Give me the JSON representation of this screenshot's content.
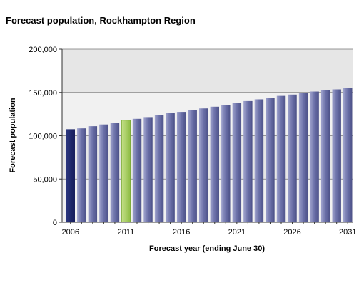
{
  "chart_data": {
    "type": "bar",
    "title": "Forecast population, Rockhampton Region",
    "xlabel": "Forecast year (ending June 30)",
    "ylabel": "Forecast population",
    "ylim": [
      0,
      200000
    ],
    "yticks": [
      0,
      50000,
      100000,
      150000,
      200000
    ],
    "ytick_labels": [
      "0",
      "50,000",
      "100,000",
      "150,000",
      "200,000"
    ],
    "xtick_labels": [
      "2006",
      "2011",
      "2016",
      "2021",
      "2026",
      "2031"
    ],
    "categories": [
      2006,
      2007,
      2008,
      2009,
      2010,
      2011,
      2012,
      2013,
      2014,
      2015,
      2016,
      2017,
      2018,
      2019,
      2020,
      2021,
      2022,
      2023,
      2024,
      2025,
      2026,
      2027,
      2028,
      2029,
      2030,
      2031
    ],
    "values": [
      107500,
      108500,
      111000,
      113000,
      115000,
      118000,
      119500,
      121500,
      123500,
      126000,
      127500,
      129500,
      131500,
      133500,
      135500,
      138000,
      140000,
      142000,
      144000,
      146000,
      147500,
      149500,
      151000,
      152500,
      153500,
      155500
    ],
    "highlight": {
      "2006": "#1f2a6e",
      "2011": "#9dc651"
    },
    "bar_color": "#6d72a6",
    "grid": true,
    "legend": "none"
  }
}
